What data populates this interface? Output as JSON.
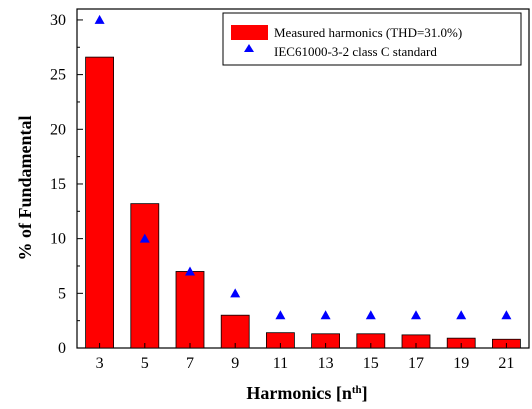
{
  "chart_data": {
    "type": "bar",
    "xlabel": "Harmonics [n",
    "xlabel_sup": "th",
    "xlabel_end": "]",
    "ylabel": "% of Fundamental",
    "ylim": [
      0,
      31
    ],
    "yticks": [
      0,
      5,
      10,
      15,
      20,
      25,
      30
    ],
    "categories": [
      "3",
      "5",
      "7",
      "9",
      "11",
      "13",
      "15",
      "17",
      "19",
      "21"
    ],
    "series": [
      {
        "name": "Measured harmonics (THD=31.0%)",
        "type": "bar",
        "color": "#ff0000",
        "values": [
          26.6,
          13.2,
          7.0,
          3.0,
          1.4,
          1.3,
          1.3,
          1.2,
          0.9,
          0.8
        ]
      },
      {
        "name": "IEC61000-3-2 class C standard",
        "type": "scatter",
        "marker": "triangle",
        "color": "#0000ff",
        "values": [
          30,
          10,
          7,
          5,
          3,
          3,
          3,
          3,
          3,
          3
        ]
      }
    ],
    "legend_position": "top-right",
    "grid": false
  }
}
